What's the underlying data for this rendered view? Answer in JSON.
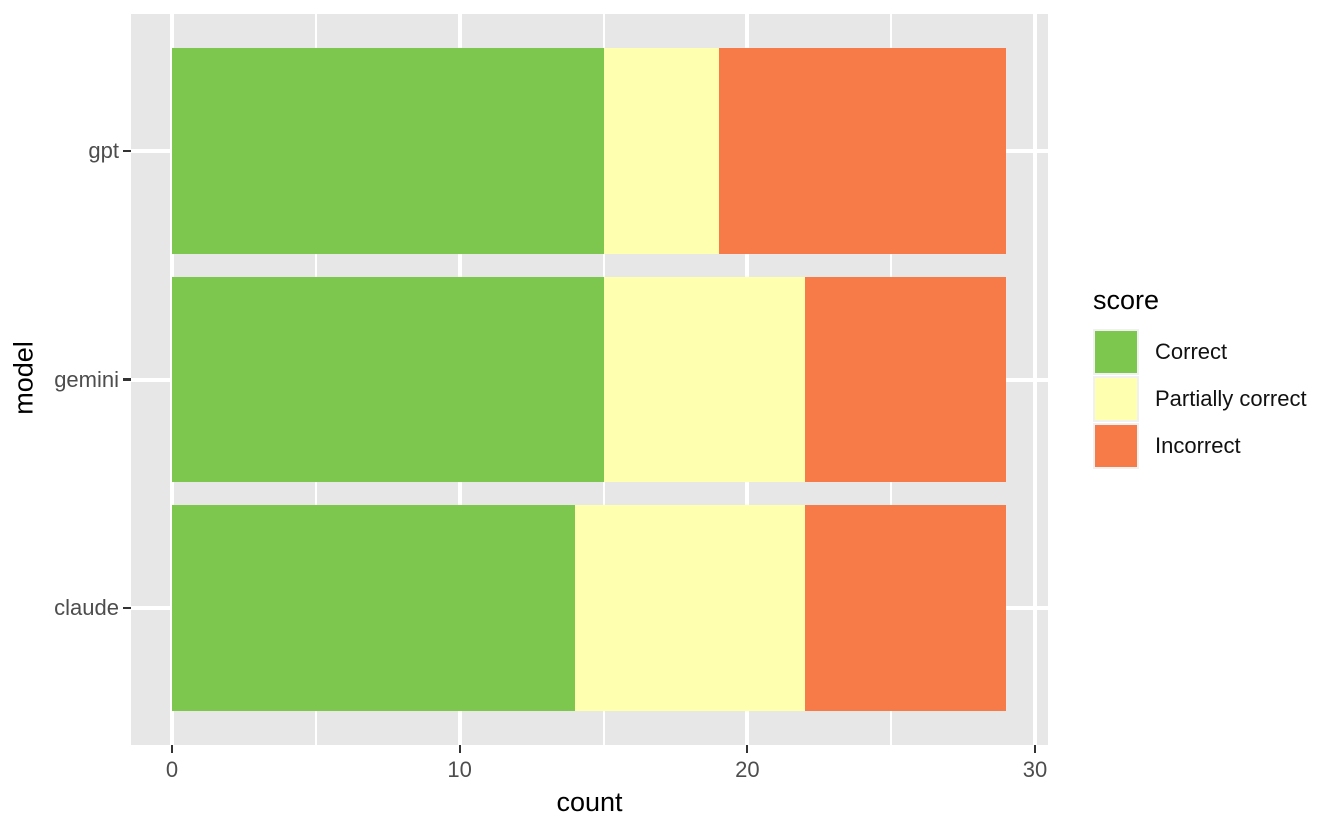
{
  "chart_data": {
    "type": "bar",
    "orientation": "horizontal",
    "stacked": true,
    "title": "",
    "xlabel": "count",
    "ylabel": "model",
    "categories": [
      "gpt",
      "gemini",
      "claude"
    ],
    "series": [
      {
        "name": "Correct",
        "color": "#7DC74E",
        "values": [
          15,
          15,
          14
        ]
      },
      {
        "name": "Partially correct",
        "color": "#FFFFB0",
        "values": [
          4,
          7,
          8
        ]
      },
      {
        "name": "Incorrect",
        "color": "#F67B49",
        "values": [
          10,
          7,
          7
        ]
      }
    ],
    "xlim": [
      0,
      30
    ],
    "x_major_ticks": [
      0,
      10,
      20,
      30
    ],
    "x_minor_ticks": [
      5,
      15,
      25
    ],
    "grid": true,
    "legend": {
      "title": "score",
      "position": "right"
    }
  },
  "style": {
    "panel_bg": "#E7E7E7",
    "grid_color": "#FFFFFF",
    "tick_color": "#333333",
    "axis_text_color": "#4D4D4D",
    "title_color": "#000000",
    "legend_text_color": "#111111",
    "legend_key_bg": "#F1F1F1"
  }
}
